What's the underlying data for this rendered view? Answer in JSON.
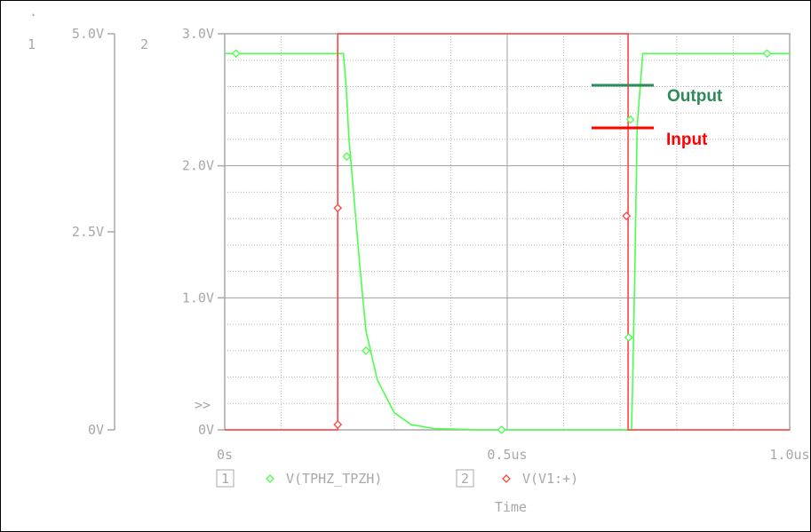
{
  "chart_data": {
    "type": "line",
    "xlabel": "Time",
    "x_ticks": [
      "0s",
      "0.5us",
      "1.0us"
    ],
    "xlim": [
      0,
      1.0
    ],
    "x_unit": "us",
    "axis1": {
      "number": "1",
      "ticks": [
        "0V",
        "2.5V",
        "5.0V"
      ],
      "ylim": [
        0,
        5
      ]
    },
    "axis2": {
      "number": "2",
      "ticks": [
        "0V",
        "1.0V",
        "2.0V",
        "3.0V"
      ],
      "ylim": [
        0,
        3
      ]
    },
    "axis_marker": ">>",
    "series": [
      {
        "name": "V(TPHZ_TPZH)",
        "axis": 2,
        "color": "#4cff4c",
        "points": [
          [
            0.0,
            2.85
          ],
          [
            0.21,
            2.85
          ],
          [
            0.215,
            2.6
          ],
          [
            0.22,
            2.2
          ],
          [
            0.23,
            1.7
          ],
          [
            0.24,
            1.2
          ],
          [
            0.25,
            0.75
          ],
          [
            0.27,
            0.38
          ],
          [
            0.3,
            0.13
          ],
          [
            0.33,
            0.04
          ],
          [
            0.37,
            0.01
          ],
          [
            0.45,
            0.0
          ],
          [
            0.72,
            0.0
          ],
          [
            0.722,
            0.35
          ],
          [
            0.726,
            1.2
          ],
          [
            0.73,
            2.3
          ],
          [
            0.74,
            2.85
          ],
          [
            1.0,
            2.85
          ]
        ]
      },
      {
        "name": "V(V1:+)",
        "axis": 2,
        "color": "#ff4444",
        "points": [
          [
            0.0,
            0.0
          ],
          [
            0.2,
            0.0
          ],
          [
            0.2,
            3.0
          ],
          [
            0.714,
            3.0
          ],
          [
            0.714,
            0.0
          ],
          [
            1.0,
            0.0
          ]
        ]
      }
    ],
    "legend_entries": [
      {
        "index": "1",
        "name": "V(TPHZ_TPZH)",
        "color": "#4cff4c"
      },
      {
        "index": "2",
        "name": "V(V1:+)",
        "color": "#ff4444"
      }
    ],
    "annotations": [
      {
        "label": "Output",
        "color": "#2e8b57"
      },
      {
        "label": "Input",
        "color": "#ff0000"
      }
    ],
    "grid": true
  }
}
